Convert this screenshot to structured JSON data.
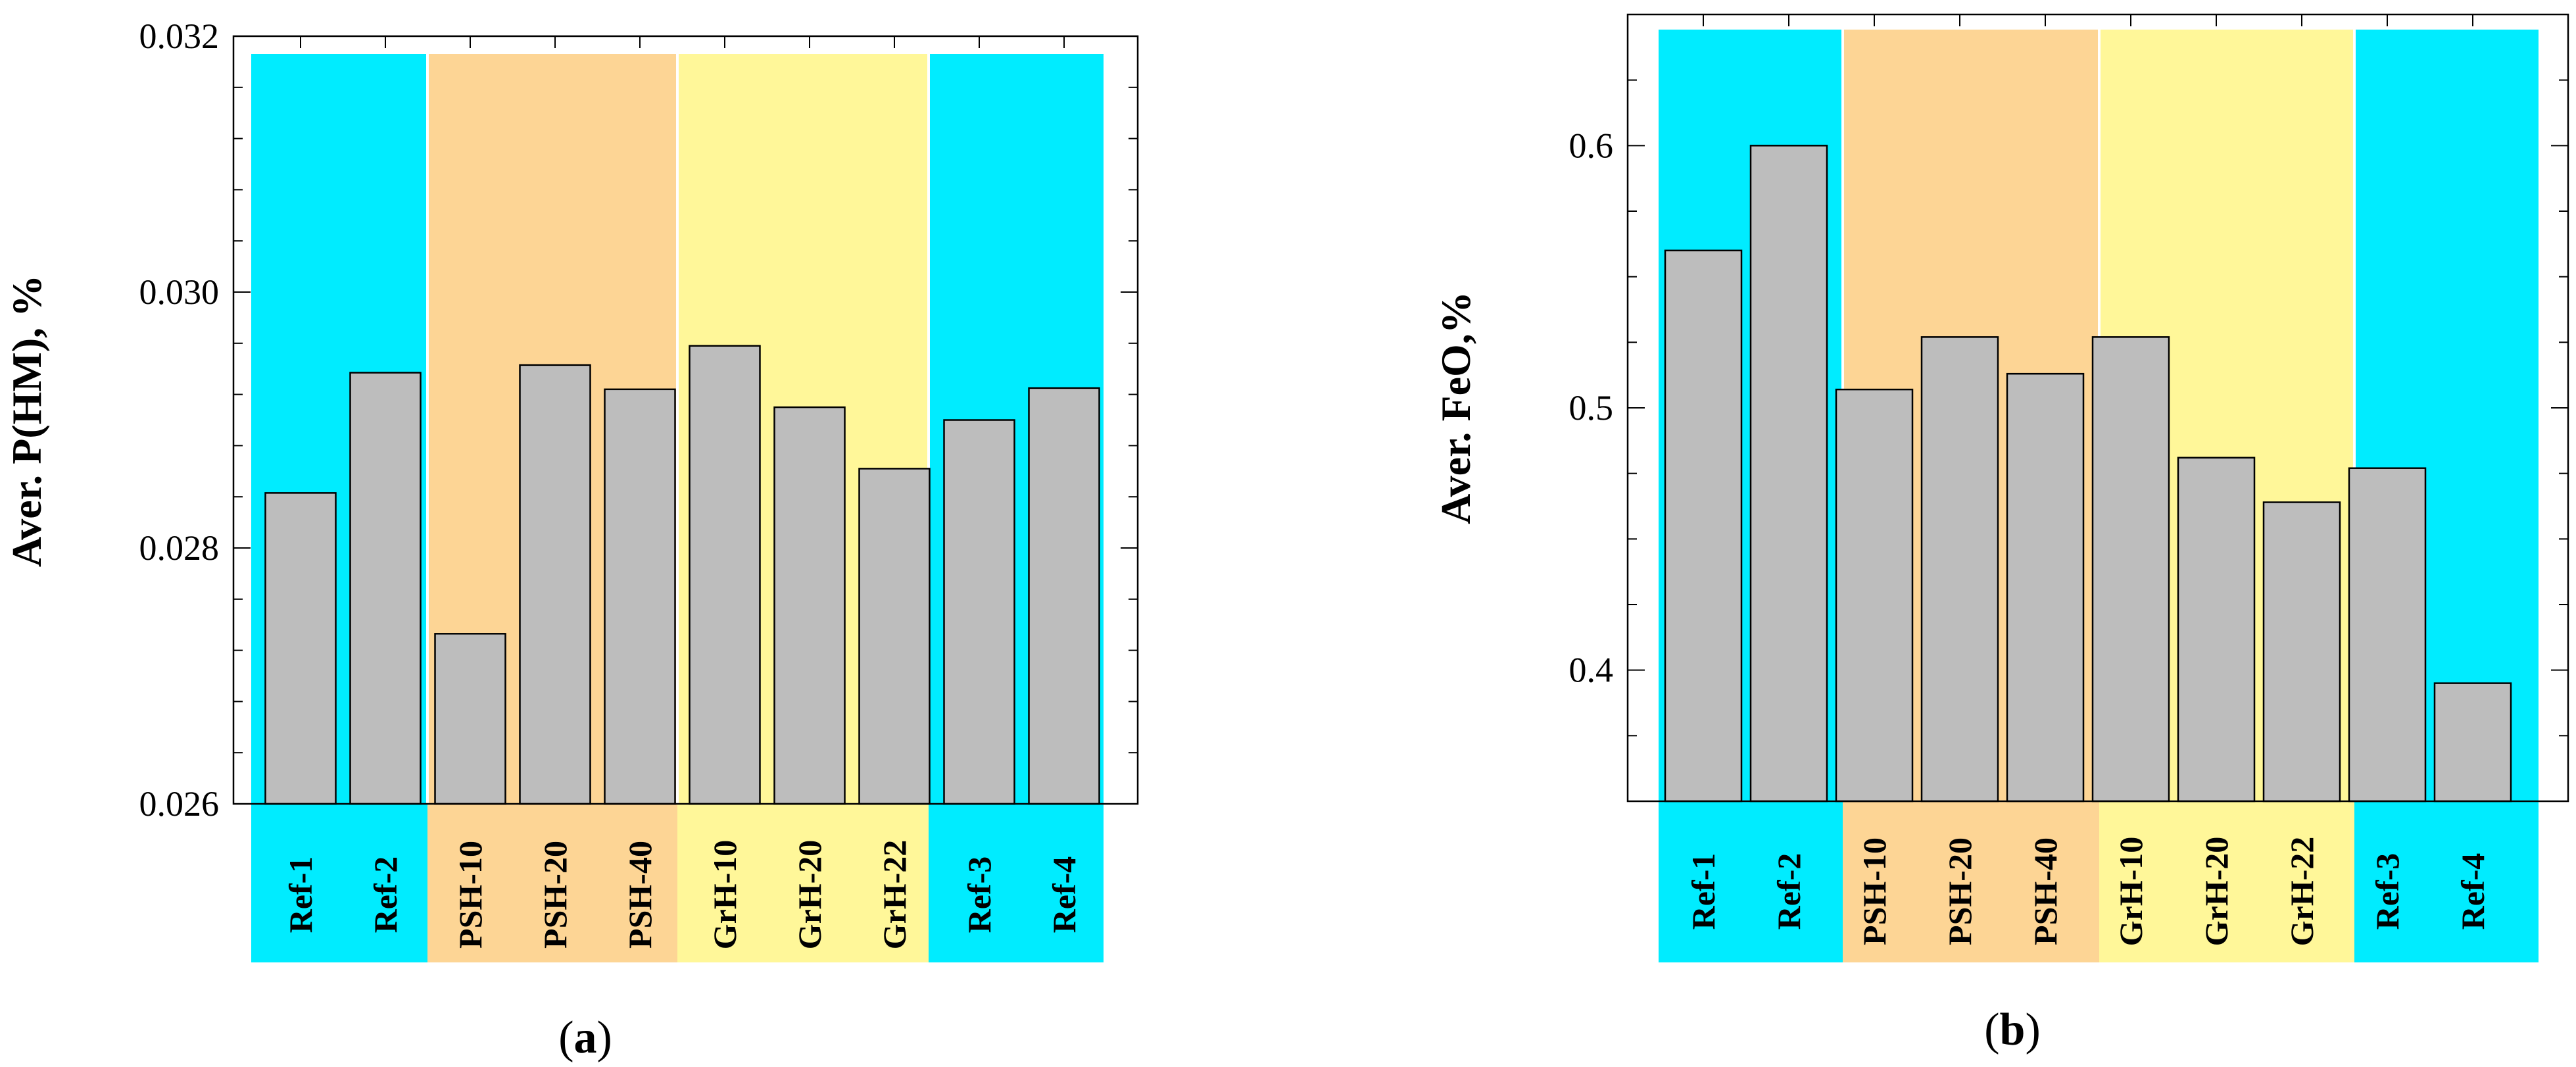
{
  "chart_data": [
    {
      "type": "bar",
      "panel_label": "a",
      "ylabel": "Aver. P(HM), %",
      "ylim": [
        0.026,
        0.032
      ],
      "yticks": [
        "0.026",
        "0.028",
        "0.030",
        "0.032"
      ],
      "categories": [
        "Ref-1",
        "Ref-2",
        "PSH-10",
        "PSH-20",
        "PSH-40",
        "GrH-10",
        "GrH-20",
        "GrH-22",
        "Ref-3",
        "Ref-4"
      ],
      "values": [
        0.02843,
        0.02937,
        0.02733,
        0.02943,
        0.02924,
        0.02958,
        0.0291,
        0.02862,
        0.029,
        0.02925
      ],
      "groups": [
        {
          "name": "Ref",
          "start": 0,
          "end": 1,
          "color": "#00ecff"
        },
        {
          "name": "PSH",
          "start": 2,
          "end": 4,
          "color": "#fdd595"
        },
        {
          "name": "GrH",
          "start": 5,
          "end": 7,
          "color": "#fff799"
        },
        {
          "name": "Ref",
          "start": 8,
          "end": 9,
          "color": "#00ecff"
        }
      ],
      "bar_color": "#bdbdbd"
    },
    {
      "type": "bar",
      "panel_label": "b",
      "ylabel": "Aver. FeO,%",
      "ylim": [
        0.35,
        0.65
      ],
      "yticks": [
        "0.4",
        "0.5",
        "0.6"
      ],
      "categories": [
        "Ref-1",
        "Ref-2",
        "PSH-10",
        "PSH-20",
        "PSH-40",
        "GrH-10",
        "GrH-20",
        "GrH-22",
        "Ref-3",
        "Ref-4"
      ],
      "values": [
        0.56,
        0.6,
        0.507,
        0.527,
        0.513,
        0.527,
        0.481,
        0.464,
        0.477,
        0.395
      ],
      "groups": [
        {
          "name": "Ref",
          "start": 0,
          "end": 1,
          "color": "#00ecff"
        },
        {
          "name": "PSH",
          "start": 2,
          "end": 4,
          "color": "#fdd595"
        },
        {
          "name": "GrH",
          "start": 5,
          "end": 7,
          "color": "#fff799"
        },
        {
          "name": "Ref",
          "start": 8,
          "end": 9,
          "color": "#00ecff"
        }
      ],
      "bar_color": "#bdbdbd"
    }
  ]
}
